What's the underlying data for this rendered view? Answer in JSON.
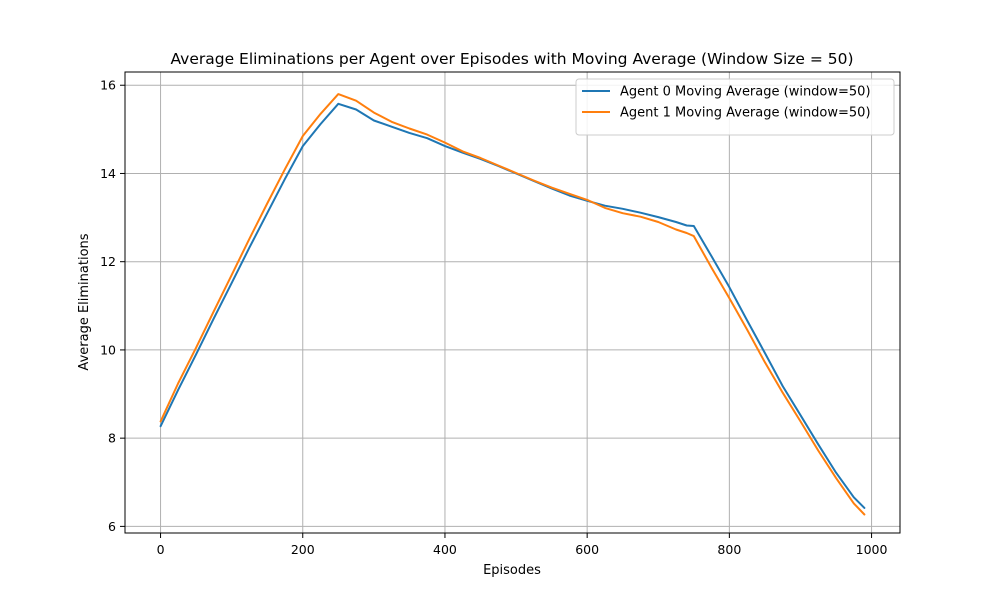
{
  "chart_data": {
    "type": "line",
    "title": "Average Eliminations per Agent over Episodes with Moving Average (Window Size = 50)",
    "xlabel": "Episodes",
    "ylabel": "Average Eliminations",
    "xlim": [
      -50,
      1040
    ],
    "ylim": [
      5.85,
      16.3
    ],
    "xticks": [
      0,
      200,
      400,
      600,
      800,
      1000
    ],
    "yticks": [
      6,
      8,
      10,
      12,
      14,
      16
    ],
    "grid": true,
    "legend_position": "top-right",
    "x": [
      0,
      25,
      50,
      75,
      100,
      125,
      150,
      175,
      200,
      225,
      250,
      275,
      300,
      325,
      350,
      375,
      400,
      425,
      450,
      475,
      500,
      525,
      550,
      575,
      600,
      625,
      650,
      675,
      700,
      725,
      740,
      750,
      775,
      800,
      825,
      850,
      875,
      900,
      925,
      950,
      975,
      990
    ],
    "series": [
      {
        "name": "Agent 0 Moving Average (window=50)",
        "color": "#1f77b4",
        "values": [
          8.27,
          9.1,
          9.9,
          10.72,
          11.52,
          12.32,
          13.1,
          13.88,
          14.62,
          15.12,
          15.58,
          15.45,
          15.2,
          15.06,
          14.92,
          14.8,
          14.62,
          14.47,
          14.33,
          14.17,
          14.0,
          13.83,
          13.66,
          13.5,
          13.38,
          13.27,
          13.2,
          13.11,
          13.01,
          12.9,
          12.82,
          12.81,
          12.12,
          11.42,
          10.67,
          9.93,
          9.18,
          8.52,
          7.86,
          7.22,
          6.66,
          6.42
        ]
      },
      {
        "name": "Agent 1 Moving Average (window=50)",
        "color": "#ff7f0e",
        "values": [
          8.38,
          9.25,
          10.05,
          10.88,
          11.7,
          12.52,
          13.32,
          14.1,
          14.85,
          15.35,
          15.8,
          15.65,
          15.38,
          15.17,
          15.02,
          14.88,
          14.7,
          14.5,
          14.35,
          14.18,
          14.01,
          13.84,
          13.68,
          13.54,
          13.4,
          13.22,
          13.1,
          13.02,
          12.9,
          12.73,
          12.65,
          12.58,
          11.86,
          11.17,
          10.46,
          9.72,
          9.03,
          8.38,
          7.72,
          7.1,
          6.52,
          6.27
        ]
      }
    ]
  }
}
